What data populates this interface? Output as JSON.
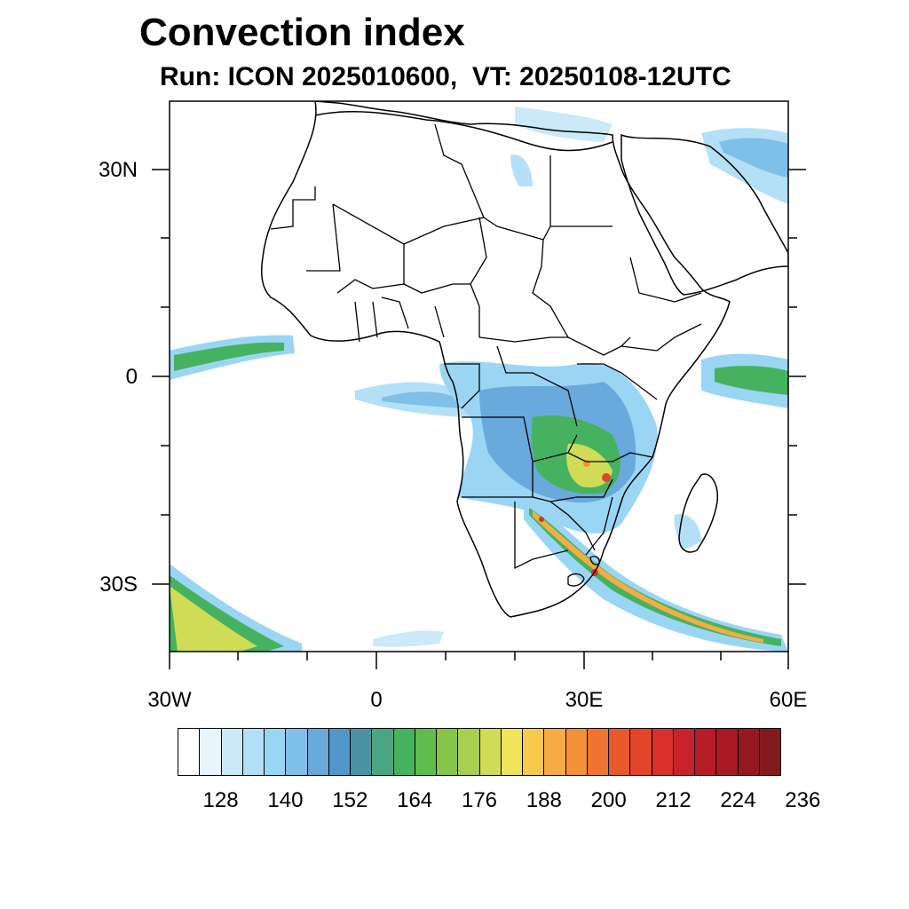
{
  "title": "Convection index",
  "subtitle": "Run: ICON 2025010600,  VT: 20250108-12UTC",
  "axes": {
    "lat_labels": [
      "30N",
      "0",
      "30S"
    ],
    "lon_labels": [
      "30W",
      "0",
      "30E",
      "60E"
    ]
  },
  "map": {
    "lon_range": [
      -30,
      60
    ],
    "lat_range": [
      -40,
      40
    ],
    "features": [
      "coastlines",
      "country-borders"
    ]
  },
  "colorbar": {
    "labels": [
      "128",
      "140",
      "152",
      "164",
      "176",
      "188",
      "200",
      "212",
      "224",
      "236"
    ],
    "colors": [
      "#ffffff",
      "#e8f5fc",
      "#cbe9f8",
      "#b4e0f7",
      "#9ad6f4",
      "#7fc0e8",
      "#6aa9dc",
      "#5396ca",
      "#4a93a4",
      "#4ba583",
      "#45b260",
      "#5ebd4c",
      "#86c548",
      "#a8cf4e",
      "#d0dc55",
      "#f0e45a",
      "#f8c94f",
      "#f6ac45",
      "#f49138",
      "#ee7430",
      "#e85a2a",
      "#e3452b",
      "#d9302c",
      "#c9222b",
      "#b81c27",
      "#a71a24",
      "#961821",
      "#851a1e"
    ]
  }
}
